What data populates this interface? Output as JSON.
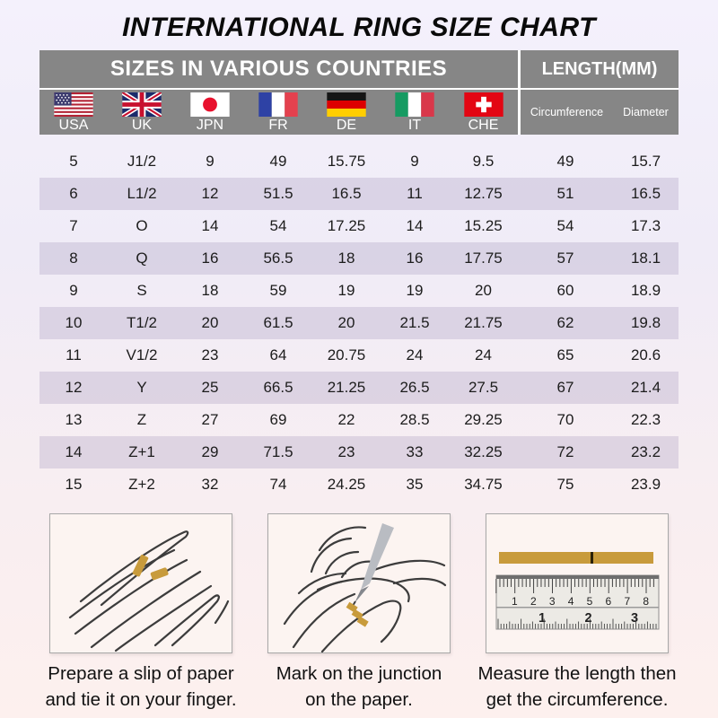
{
  "page": {
    "title": "INTERNATIONAL RING SIZE CHART"
  },
  "table": {
    "header_left": "SIZES IN VARIOUS COUNTRIES",
    "header_right": "LENGTH(MM)",
    "countries": [
      {
        "code": "USA",
        "flag": "usa"
      },
      {
        "code": "UK",
        "flag": "uk"
      },
      {
        "code": "JPN",
        "flag": "jpn"
      },
      {
        "code": "FR",
        "flag": "fr"
      },
      {
        "code": "DE",
        "flag": "de"
      },
      {
        "code": "IT",
        "flag": "it"
      },
      {
        "code": "CHE",
        "flag": "che"
      }
    ],
    "length_columns": [
      "Circumference",
      "Diameter"
    ]
  },
  "chart_data": {
    "type": "table",
    "title": "INTERNATIONAL RING SIZE CHART",
    "columns": [
      "USA",
      "UK",
      "JPN",
      "FR",
      "DE",
      "IT",
      "CHE",
      "Circumference (mm)",
      "Diameter (mm)"
    ],
    "rows": [
      [
        "5",
        "J1/2",
        "9",
        "49",
        "15.75",
        "9",
        "9.5",
        "49",
        "15.7"
      ],
      [
        "6",
        "L1/2",
        "12",
        "51.5",
        "16.5",
        "11",
        "12.75",
        "51",
        "16.5"
      ],
      [
        "7",
        "O",
        "14",
        "54",
        "17.25",
        "14",
        "15.25",
        "54",
        "17.3"
      ],
      [
        "8",
        "Q",
        "16",
        "56.5",
        "18",
        "16",
        "17.75",
        "57",
        "18.1"
      ],
      [
        "9",
        "S",
        "18",
        "59",
        "19",
        "19",
        "20",
        "60",
        "18.9"
      ],
      [
        "10",
        "T1/2",
        "20",
        "61.5",
        "20",
        "21.5",
        "21.75",
        "62",
        "19.8"
      ],
      [
        "11",
        "V1/2",
        "23",
        "64",
        "20.75",
        "24",
        "24",
        "65",
        "20.6"
      ],
      [
        "12",
        "Y",
        "25",
        "66.5",
        "21.25",
        "26.5",
        "27.5",
        "67",
        "21.4"
      ],
      [
        "13",
        "Z",
        "27",
        "69",
        "22",
        "28.5",
        "29.25",
        "70",
        "22.3"
      ],
      [
        "14",
        "Z+1",
        "29",
        "71.5",
        "23",
        "33",
        "32.25",
        "72",
        "23.2"
      ],
      [
        "15",
        "Z+2",
        "32",
        "74",
        "24.25",
        "35",
        "34.75",
        "75",
        "23.9"
      ]
    ]
  },
  "instructions": [
    {
      "illustration": "hand-with-paper-strip",
      "lines": [
        "Prepare a slip of paper",
        "and tie it on your finger."
      ]
    },
    {
      "illustration": "hand-marking-pen",
      "lines": [
        "Mark on the junction",
        "on the paper."
      ]
    },
    {
      "illustration": "ruler-measuring",
      "lines": [
        "Measure the length then",
        "get the circumference."
      ]
    }
  ],
  "ruler": {
    "cm_numbers": [
      "1",
      "2",
      "3",
      "4",
      "5",
      "6",
      "7",
      "8"
    ],
    "inch_numbers": [
      "1",
      "2",
      "3"
    ]
  },
  "colors": {
    "header_gray": "#868686",
    "row_shade": "#dcd6e8",
    "gold_strip": "#C89B3C",
    "text": "#1c1c1c",
    "background_top": "#f4f1fc",
    "background_bottom": "#fdf0ee"
  }
}
